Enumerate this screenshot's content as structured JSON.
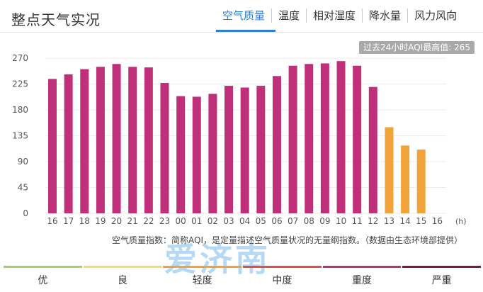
{
  "header": {
    "title": "整点天气实况",
    "tabs": [
      "空气质量",
      "温度",
      "相对湿度",
      "降水量",
      "风力风向"
    ],
    "active_tab": 0
  },
  "max_badge": "过去24小时AQI最高值: 265",
  "footnote": "空气质量指数：简称AQI，是定量描述空气质量状况的无量纲指数。（数据由生态环境部提供）",
  "watermark": "爱济南",
  "colors": {
    "bar_heavy": "#c0307a",
    "bar_light": "#f1a33b",
    "accent": "#2d7dd2",
    "grid": "#ececec",
    "axis_text": "#555555"
  },
  "chart_data": {
    "type": "bar",
    "categories": [
      "16",
      "17",
      "18",
      "19",
      "20",
      "21",
      "22",
      "23",
      "00",
      "01",
      "02",
      "03",
      "04",
      "05",
      "06",
      "07",
      "08",
      "09",
      "10",
      "11",
      "12",
      "13",
      "14",
      "15",
      "16"
    ],
    "values": [
      234,
      242,
      251,
      255,
      260,
      255,
      254,
      227,
      204,
      203,
      208,
      222,
      219,
      222,
      239,
      257,
      260,
      261,
      265,
      257,
      220,
      150,
      118,
      111,
      null
    ],
    "bar_colors": [
      "#c0307a",
      "#c0307a",
      "#c0307a",
      "#c0307a",
      "#c0307a",
      "#c0307a",
      "#c0307a",
      "#c0307a",
      "#c0307a",
      "#c0307a",
      "#c0307a",
      "#c0307a",
      "#c0307a",
      "#c0307a",
      "#c0307a",
      "#c0307a",
      "#c0307a",
      "#c0307a",
      "#c0307a",
      "#c0307a",
      "#c0307a",
      "#f1a33b",
      "#f1a33b",
      "#f1a33b",
      ""
    ],
    "x_unit": "(h)",
    "yticks": [
      0,
      45,
      90,
      135,
      180,
      225,
      270
    ],
    "ylim": [
      0,
      285
    ],
    "grid": true
  },
  "legend": [
    {
      "label": "优",
      "color": "#a4cd6b"
    },
    {
      "label": "良",
      "color": "#f2dc69"
    },
    {
      "label": "轻度",
      "color": "#f1a33b"
    },
    {
      "label": "中度",
      "color": "#e0504a"
    },
    {
      "label": "重度",
      "color": "#b8327a"
    },
    {
      "label": "严重",
      "color": "#7a1a3a"
    }
  ]
}
